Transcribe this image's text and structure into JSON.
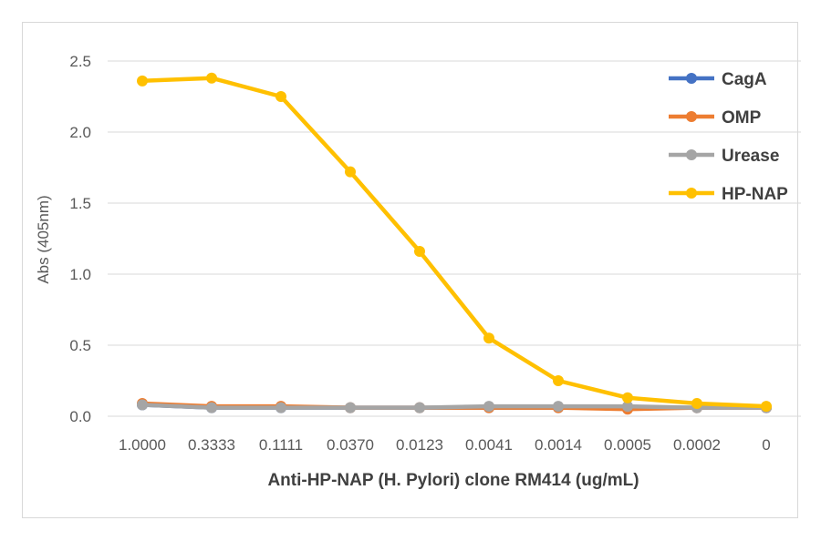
{
  "chart_data": {
    "type": "line",
    "title": "",
    "xlabel": "Anti-HP-NAP (H. Pylori) clone RM414 (ug/mL)",
    "ylabel": "Abs (405nm)",
    "categories": [
      "1.0000",
      "0.3333",
      "0.1111",
      "0.0370",
      "0.0123",
      "0.0041",
      "0.0014",
      "0.0005",
      "0.0002",
      "0"
    ],
    "ylim": [
      0,
      2.5
    ],
    "yticks": [
      "0.0",
      "0.5",
      "1.0",
      "1.5",
      "2.0",
      "2.5"
    ],
    "grid": true,
    "legend_position": "top-right",
    "series": [
      {
        "name": "CagA",
        "color": "#4472C4",
        "values": [
          0.08,
          0.06,
          0.06,
          0.06,
          0.06,
          0.06,
          0.06,
          0.06,
          0.06,
          0.06
        ]
      },
      {
        "name": "OMP",
        "color": "#ED7D31",
        "values": [
          0.09,
          0.07,
          0.07,
          0.06,
          0.06,
          0.06,
          0.06,
          0.05,
          0.06,
          0.06
        ]
      },
      {
        "name": "Urease",
        "color": "#A5A5A5",
        "values": [
          0.08,
          0.06,
          0.06,
          0.06,
          0.06,
          0.07,
          0.07,
          0.07,
          0.06,
          0.06
        ]
      },
      {
        "name": "HP-NAP",
        "color": "#FFC000",
        "values": [
          2.36,
          2.38,
          2.25,
          1.72,
          1.16,
          0.55,
          0.25,
          0.13,
          0.09,
          0.07
        ]
      }
    ]
  }
}
